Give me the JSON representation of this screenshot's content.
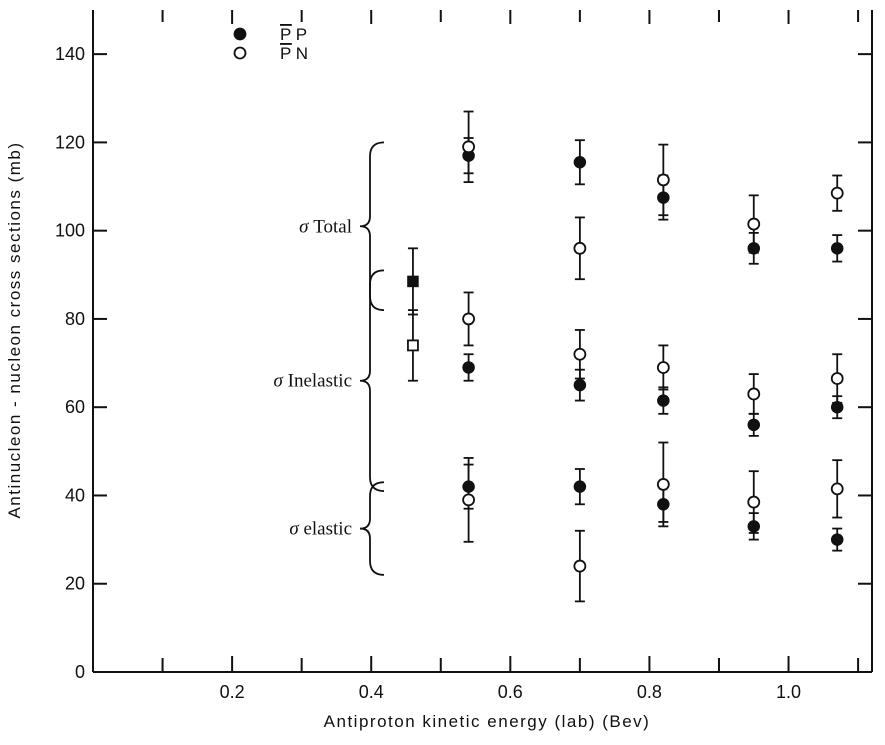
{
  "chart_data": {
    "type": "scatter",
    "xlabel": "Antiproton kinetic energy (lab) (Bev)",
    "ylabel": "Antinucleon - nucleon cross sections (mb)",
    "xlim": [
      0.0,
      1.12
    ],
    "ylim": [
      0,
      150
    ],
    "x_ticks": [
      0.2,
      0.4,
      0.6,
      0.8,
      1.0
    ],
    "x_tick_labels": [
      "0.2",
      "0.4",
      "0.6",
      "0.8",
      "1.0"
    ],
    "y_ticks": [
      0,
      20,
      40,
      60,
      80,
      100,
      120,
      140
    ],
    "y_tick_labels": [
      "0",
      "20",
      "40",
      "60",
      "80",
      "100",
      "120",
      "140"
    ],
    "grid": false,
    "legend_position": "top-left",
    "series": [
      {
        "name": "P̄ P",
        "legend_bar": "P",
        "legend_rest": " P",
        "marker": "filled-circle",
        "points": [
          {
            "x": 0.54,
            "y": 117,
            "err": 4
          },
          {
            "x": 0.7,
            "y": 115.5,
            "err": 5
          },
          {
            "x": 0.82,
            "y": 107.5,
            "err": 5
          },
          {
            "x": 0.95,
            "y": 96,
            "err": 3.5
          },
          {
            "x": 1.07,
            "y": 96,
            "err": 3
          },
          {
            "x": 0.54,
            "y": 69,
            "err": 3
          },
          {
            "x": 0.7,
            "y": 65,
            "err": 3.5
          },
          {
            "x": 0.82,
            "y": 61.5,
            "err": 3
          },
          {
            "x": 0.95,
            "y": 56,
            "err": 2.5
          },
          {
            "x": 1.07,
            "y": 60,
            "err": 2.5
          },
          {
            "x": 0.54,
            "y": 42,
            "err": 5
          },
          {
            "x": 0.7,
            "y": 42,
            "err": 4
          },
          {
            "x": 0.82,
            "y": 38,
            "err": 4
          },
          {
            "x": 0.95,
            "y": 33,
            "err": 3
          },
          {
            "x": 1.07,
            "y": 30,
            "err": 2.5
          }
        ]
      },
      {
        "name": "P̄ N",
        "legend_bar": "P",
        "legend_rest": " N",
        "marker": "open-circle",
        "points": [
          {
            "x": 0.54,
            "y": 119,
            "err": 8
          },
          {
            "x": 0.7,
            "y": 96,
            "err": 7
          },
          {
            "x": 0.82,
            "y": 111.5,
            "err": 8
          },
          {
            "x": 0.95,
            "y": 101.5,
            "err": 6.5
          },
          {
            "x": 1.07,
            "y": 108.5,
            "err": 4
          },
          {
            "x": 0.54,
            "y": 80,
            "err": 6
          },
          {
            "x": 0.7,
            "y": 72,
            "err": 5.5
          },
          {
            "x": 0.82,
            "y": 69,
            "err": 5
          },
          {
            "x": 0.95,
            "y": 63,
            "err": 4.5
          },
          {
            "x": 1.07,
            "y": 66.5,
            "err": 5.5
          },
          {
            "x": 0.54,
            "y": 39,
            "err": 9.5
          },
          {
            "x": 0.7,
            "y": 24,
            "err": 8
          },
          {
            "x": 0.82,
            "y": 42.5,
            "err": 9.5
          },
          {
            "x": 0.95,
            "y": 38.5,
            "err": 7
          },
          {
            "x": 1.07,
            "y": 41.5,
            "err": 6.5
          }
        ]
      },
      {
        "name": "filled-square",
        "marker": "filled-square",
        "points": [
          {
            "x": 0.46,
            "y": 88.5,
            "err": 7.5
          }
        ]
      },
      {
        "name": "open-square",
        "marker": "open-square",
        "points": [
          {
            "x": 0.46,
            "y": 74,
            "err": 8
          }
        ]
      }
    ],
    "annotations": [
      {
        "sigma": "σ",
        "text": " Total",
        "y": 102.5,
        "brace_top": 120,
        "brace_bottom": 82
      },
      {
        "sigma": "σ",
        "text": " Inelastic",
        "y": 66,
        "brace_top": 91,
        "brace_bottom": 41
      },
      {
        "sigma": "σ",
        "text": " elastic",
        "y": 40,
        "brace_top": 43,
        "brace_bottom": 22
      }
    ]
  }
}
